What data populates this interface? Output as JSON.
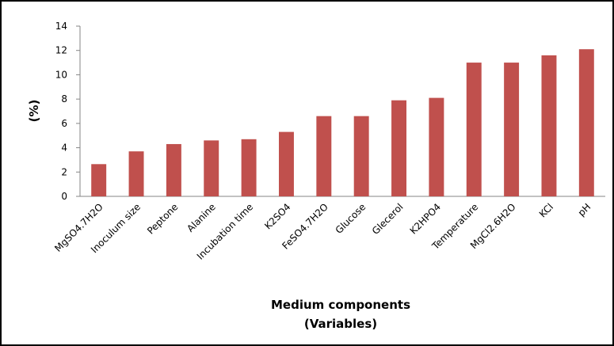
{
  "chart_data": {
    "type": "bar",
    "ylabel": "(%)",
    "xlabel": [
      "Medium components",
      "(Variables)"
    ],
    "categories": [
      "MgSO4.7H2O",
      "Inoculum size",
      "Peptone",
      "Alanine",
      "Incubation time",
      "K2SO4",
      "FeSO4.7H2O",
      "Glucose",
      "Glecerol",
      "K2HPO4",
      "Temperature",
      "MgCl2.6H2O",
      "KCl",
      "pH"
    ],
    "values": [
      2.65,
      3.7,
      4.3,
      4.6,
      4.7,
      5.3,
      6.6,
      6.6,
      7.9,
      8.1,
      11.0,
      11.0,
      11.6,
      12.1
    ],
    "color": "#c0504d",
    "ylim": [
      0,
      14
    ],
    "yticks": [
      0,
      2,
      4,
      6,
      8,
      10,
      12,
      14
    ],
    "grid": false
  }
}
